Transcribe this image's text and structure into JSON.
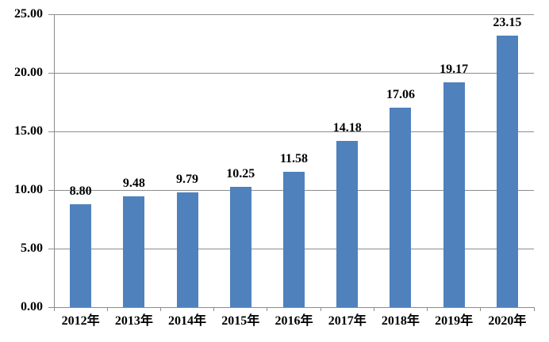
{
  "chart_data": {
    "type": "bar",
    "title": "",
    "categories": [
      "2012年",
      "2013年",
      "2014年",
      "2015年",
      "2016年",
      "2017年",
      "2018年",
      "2019年",
      "2020年"
    ],
    "values": [
      8.8,
      9.48,
      9.79,
      10.25,
      11.58,
      14.18,
      17.06,
      19.17,
      23.15
    ],
    "value_labels": [
      "8.80",
      "9.48",
      "9.79",
      "10.25",
      "11.58",
      "14.18",
      "17.06",
      "19.17",
      "23.15"
    ],
    "xlabel": "",
    "ylabel": "",
    "ylim": [
      0,
      25
    ],
    "y_tick_step": 5,
    "y_tick_labels": [
      "0.00",
      "5.00",
      "10.00",
      "15.00",
      "20.00",
      "25.00"
    ],
    "grid": "horizontal",
    "legend": "none",
    "colors": {
      "bar": "#4F81BD",
      "grid": "#8C8C8C",
      "axis": "#8C8C8C",
      "text": "#000000",
      "background": "#FFFFFF"
    }
  }
}
